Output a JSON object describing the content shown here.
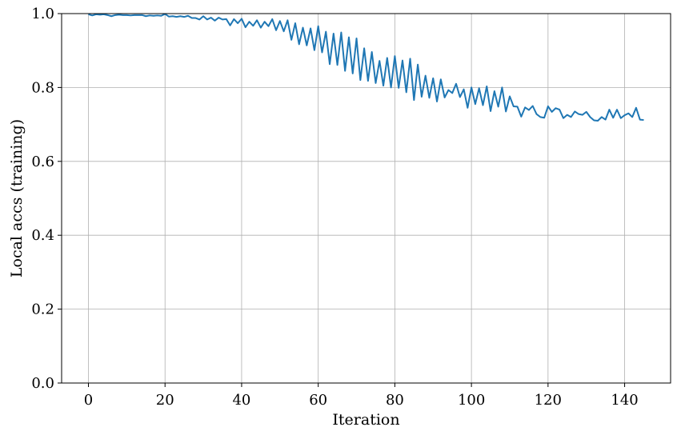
{
  "chart_data": {
    "type": "line",
    "title": "",
    "xlabel": "Iteration",
    "ylabel": "Local accs (training)",
    "xlim": [
      -7,
      152
    ],
    "ylim": [
      0.0,
      1.0
    ],
    "xticks": [
      0,
      20,
      40,
      60,
      80,
      100,
      120,
      140
    ],
    "yticks": [
      0.0,
      0.2,
      0.4,
      0.6,
      0.8,
      1.0
    ],
    "xtick_labels": [
      "0",
      "20",
      "40",
      "60",
      "80",
      "100",
      "120",
      "140"
    ],
    "ytick_labels": [
      "0.0",
      "0.2",
      "0.4",
      "0.6",
      "0.8",
      "1.0"
    ],
    "grid": true,
    "series": [
      {
        "color": "#1f77b4",
        "x": [
          0,
          1,
          2,
          3,
          4,
          5,
          6,
          7,
          8,
          9,
          10,
          11,
          12,
          13,
          14,
          15,
          16,
          17,
          18,
          19,
          20,
          21,
          22,
          23,
          24,
          25,
          26,
          27,
          28,
          29,
          30,
          31,
          32,
          33,
          34,
          35,
          36,
          37,
          38,
          39,
          40,
          41,
          42,
          43,
          44,
          45,
          46,
          47,
          48,
          49,
          50,
          51,
          52,
          53,
          54,
          55,
          56,
          57,
          58,
          59,
          60,
          61,
          62,
          63,
          64,
          65,
          66,
          67,
          68,
          69,
          70,
          71,
          72,
          73,
          74,
          75,
          76,
          77,
          78,
          79,
          80,
          81,
          82,
          83,
          84,
          85,
          86,
          87,
          88,
          89,
          90,
          91,
          92,
          93,
          94,
          95,
          96,
          97,
          98,
          99,
          100,
          101,
          102,
          103,
          104,
          105,
          106,
          107,
          108,
          109,
          110,
          111,
          112,
          113,
          114,
          115,
          116,
          117,
          118,
          119,
          120,
          121,
          122,
          123,
          124,
          125,
          126,
          127,
          128,
          129,
          130,
          131,
          132,
          133,
          134,
          135,
          136,
          137,
          138,
          139,
          140,
          141,
          142,
          143,
          144,
          145
        ],
        "y": [
          0.998,
          0.995,
          0.998,
          0.997,
          0.998,
          0.996,
          0.993,
          0.996,
          0.997,
          0.996,
          0.996,
          0.995,
          0.996,
          0.996,
          0.996,
          0.993,
          0.995,
          0.994,
          0.995,
          0.994,
          0.999,
          0.992,
          0.993,
          0.991,
          0.993,
          0.991,
          0.994,
          0.988,
          0.988,
          0.984,
          0.993,
          0.984,
          0.989,
          0.981,
          0.989,
          0.984,
          0.985,
          0.968,
          0.985,
          0.974,
          0.986,
          0.963,
          0.978,
          0.967,
          0.982,
          0.962,
          0.978,
          0.966,
          0.985,
          0.955,
          0.98,
          0.952,
          0.982,
          0.929,
          0.974,
          0.917,
          0.962,
          0.914,
          0.96,
          0.901,
          0.966,
          0.895,
          0.951,
          0.863,
          0.946,
          0.861,
          0.949,
          0.845,
          0.936,
          0.838,
          0.933,
          0.82,
          0.906,
          0.818,
          0.896,
          0.812,
          0.872,
          0.805,
          0.88,
          0.8,
          0.885,
          0.799,
          0.873,
          0.787,
          0.878,
          0.766,
          0.862,
          0.775,
          0.832,
          0.772,
          0.825,
          0.762,
          0.822,
          0.773,
          0.793,
          0.785,
          0.81,
          0.774,
          0.795,
          0.745,
          0.8,
          0.755,
          0.798,
          0.752,
          0.803,
          0.736,
          0.79,
          0.748,
          0.8,
          0.735,
          0.776,
          0.749,
          0.748,
          0.721,
          0.746,
          0.739,
          0.75,
          0.728,
          0.72,
          0.718,
          0.749,
          0.734,
          0.744,
          0.74,
          0.717,
          0.726,
          0.72,
          0.735,
          0.728,
          0.726,
          0.734,
          0.72,
          0.711,
          0.71,
          0.72,
          0.713,
          0.74,
          0.718,
          0.74,
          0.717,
          0.725,
          0.73,
          0.72,
          0.745,
          0.713,
          0.712
        ]
      }
    ]
  }
}
